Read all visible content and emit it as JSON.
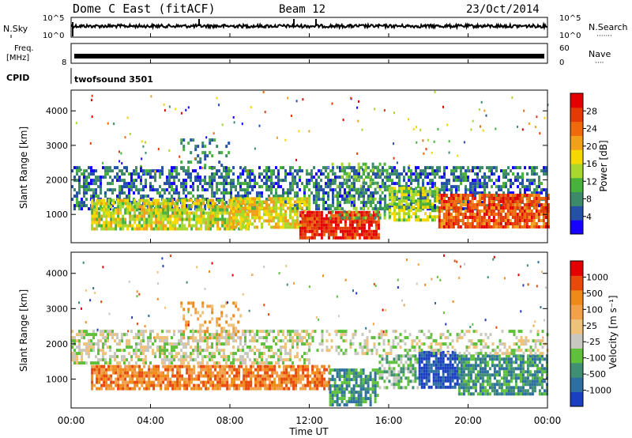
{
  "header": {
    "station": "Dome C East (fitACF)",
    "beam": "Beam 12",
    "date": "23/Oct/2014"
  },
  "noise_panel": {
    "left_label": "N.Sky",
    "right_label": "N.Search",
    "right_dots": "·······",
    "left_ticks": [
      "10^5",
      "10^0"
    ],
    "right_ticks": [
      "10^5",
      "10^0"
    ]
  },
  "freq_panel": {
    "left_label_line1": "Freq.",
    "left_label_line2": "[MHz]",
    "left_ticks": [
      "8"
    ],
    "right_label": "Nave",
    "right_dots": "····",
    "right_ticks": [
      "60",
      "0"
    ]
  },
  "cpid_panel": {
    "label": "CPID",
    "program": "twofsound 3501"
  },
  "x_axis": {
    "title": "Time UT",
    "ticks": [
      "00:00",
      "04:00",
      "08:00",
      "12:00",
      "16:00",
      "20:00",
      "00:00"
    ]
  },
  "chart_data": [
    {
      "type": "heatmap",
      "quantity": "Power",
      "ylabel": "Slant Range [km]",
      "yticks": [
        1000,
        2000,
        3000,
        4000
      ],
      "ylim": [
        180,
        4600
      ],
      "xlim_hours": [
        0,
        24
      ],
      "colorbar": {
        "label": "Power [dB]",
        "ticks": [
          "28",
          "24",
          "20",
          "16",
          "12",
          "8",
          "4"
        ],
        "colors": [
          "#1600ff",
          "#2451a6",
          "#3d8a6a",
          "#48b23c",
          "#a8d72f",
          "#f5d800",
          "#f1a01b",
          "#ee6a0c",
          "#e33a06",
          "#e30000"
        ]
      },
      "blobs": [
        {
          "t0": 0.0,
          "t1": 24.0,
          "r0": 1200,
          "r1": 2400,
          "level": 1.5,
          "density": 0.55
        },
        {
          "t0": 1.0,
          "t1": 9.0,
          "r0": 600,
          "r1": 1450,
          "level": 4.5,
          "density": 0.8
        },
        {
          "t0": 8.0,
          "t1": 12.0,
          "r0": 600,
          "r1": 1500,
          "level": 5.0,
          "density": 0.7
        },
        {
          "t0": 11.5,
          "t1": 15.5,
          "r0": 300,
          "r1": 1100,
          "level": 8.5,
          "density": 0.85
        },
        {
          "t0": 13.0,
          "t1": 16.0,
          "r0": 900,
          "r1": 2500,
          "level": 3.0,
          "density": 0.35
        },
        {
          "t0": 16.0,
          "t1": 18.5,
          "r0": 800,
          "r1": 1800,
          "level": 4.0,
          "density": 0.7
        },
        {
          "t0": 18.5,
          "t1": 24.0,
          "r0": 600,
          "r1": 1600,
          "level": 7.5,
          "density": 0.85
        },
        {
          "t0": 5.5,
          "t1": 8.0,
          "r0": 2300,
          "r1": 3200,
          "level": 2.0,
          "density": 0.25
        }
      ]
    },
    {
      "type": "heatmap",
      "quantity": "Velocity",
      "ylabel": "Slant Range [km]",
      "yticks": [
        1000,
        2000,
        3000,
        4000
      ],
      "ylim": [
        180,
        4600
      ],
      "xlim_hours": [
        0,
        24
      ],
      "colorbar": {
        "label": "Velocity [m s⁻¹]",
        "ticks": [
          "1000",
          "500",
          "100",
          "25",
          "-25",
          "-100",
          "-500",
          "-1000"
        ],
        "colors": [
          "#1a3fbf",
          "#2c6fa0",
          "#3f8f75",
          "#5fc03c",
          "#c8c8c0",
          "#eec27b",
          "#f2a04a",
          "#ee8a1a",
          "#e84a0c",
          "#e30000"
        ]
      },
      "blobs": [
        {
          "t0": 0.0,
          "t1": 12.0,
          "r0": 1500,
          "r1": 2400,
          "level": 4,
          "density": 0.55
        },
        {
          "t0": 1.0,
          "t1": 13.0,
          "r0": 700,
          "r1": 1400,
          "level": 7,
          "density": 0.8
        },
        {
          "t0": 5.5,
          "t1": 8.5,
          "r0": 2200,
          "r1": 3200,
          "level": 6,
          "density": 0.3
        },
        {
          "t0": 13.0,
          "t1": 15.5,
          "r0": 300,
          "r1": 1300,
          "level": 2,
          "density": 0.75
        },
        {
          "t0": 15.5,
          "t1": 17.5,
          "r0": 800,
          "r1": 1700,
          "level": 3,
          "density": 0.55
        },
        {
          "t0": 17.5,
          "t1": 19.5,
          "r0": 800,
          "r1": 1800,
          "level": 0,
          "density": 0.8
        },
        {
          "t0": 19.5,
          "t1": 24.0,
          "r0": 600,
          "r1": 1700,
          "level": 2,
          "density": 0.8
        },
        {
          "t0": 12.0,
          "t1": 24.0,
          "r0": 1700,
          "r1": 2400,
          "level": 4,
          "density": 0.3
        }
      ]
    }
  ]
}
